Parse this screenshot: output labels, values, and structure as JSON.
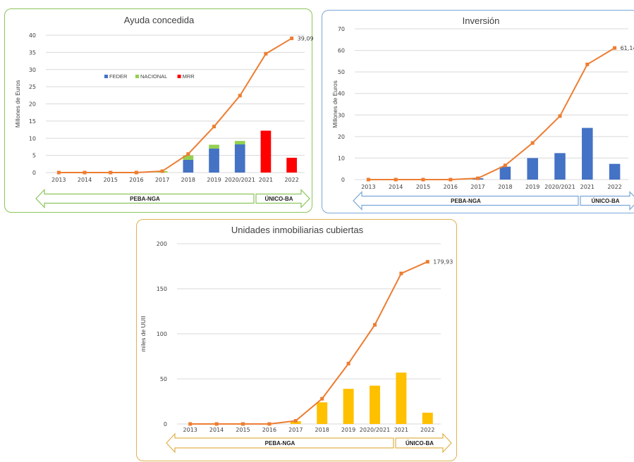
{
  "colors": {
    "line": "#ed7d31",
    "feder": "#4472c4",
    "nacional": "#92d050",
    "mrr": "#ff0000",
    "uuii": "#ffc000",
    "grid": "#d9d9d9",
    "green_border": "#8cc55a",
    "blue_border": "#7aa7d8",
    "gold_border": "#e0b24e"
  },
  "chart_data": [
    {
      "type": "bar+line",
      "title": "Ayuda concedida",
      "ylabel": "Millones de Euros",
      "ylim": [
        0,
        40
      ],
      "yticks": [
        "0",
        "5",
        "10",
        "15",
        "20",
        "25",
        "30",
        "35",
        "40"
      ],
      "grid": true,
      "categories": [
        "2013",
        "2014",
        "2015",
        "2016",
        "2017",
        "2018",
        "2019",
        "2020/2021",
        "2021",
        "2022"
      ],
      "legend": {
        "placement": "inside-top-left",
        "items": [
          "FEDER",
          "NACIONAL",
          "MRR"
        ]
      },
      "series": [
        {
          "name": "FEDER",
          "kind": "bar",
          "color": "feder",
          "values": [
            0,
            0,
            0,
            0,
            0,
            3.7,
            7.0,
            8.2,
            0,
            0
          ]
        },
        {
          "name": "NACIONAL",
          "kind": "bar",
          "color": "nacional",
          "values": [
            0,
            0,
            0,
            0,
            0.4,
            1.3,
            1.1,
            1.0,
            0,
            0
          ]
        },
        {
          "name": "MRR",
          "kind": "bar",
          "color": "mrr",
          "values": [
            0,
            0,
            0,
            0,
            0,
            0,
            0,
            0,
            12.2,
            4.3
          ]
        },
        {
          "kind": "line",
          "color": "line",
          "values": [
            0,
            0,
            0,
            0,
            0.4,
            5.4,
            13.4,
            22.4,
            34.6,
            39.09
          ]
        }
      ],
      "end_label": "39,09",
      "arrows": [
        {
          "label": "PEBA-NGA"
        },
        {
          "label": "ÚNICO-BA"
        }
      ]
    },
    {
      "type": "bar+line",
      "title": "Inversión",
      "ylabel": "Millones de Euros",
      "ylim": [
        0,
        70
      ],
      "yticks": [
        "0",
        "10",
        "20",
        "30",
        "40",
        "50",
        "60",
        "70"
      ],
      "grid": true,
      "categories": [
        "2013",
        "2014",
        "2015",
        "2016",
        "2017",
        "2018",
        "2019",
        "2020/2021",
        "2021",
        "2022"
      ],
      "series": [
        {
          "kind": "bar",
          "color": "feder",
          "values": [
            0,
            0,
            0,
            0,
            0.6,
            6.0,
            10.0,
            12.3,
            24.0,
            7.3
          ]
        },
        {
          "kind": "line",
          "color": "line",
          "values": [
            0,
            0,
            0,
            0,
            0.6,
            6.6,
            17.0,
            29.5,
            53.5,
            61.14
          ]
        }
      ],
      "end_label": "61,14",
      "arrows": [
        {
          "label": "PEBA-NGA"
        },
        {
          "label": "ÚNICO-BA"
        }
      ]
    },
    {
      "type": "bar+line",
      "title": "Unidades inmobiliarias cubiertas",
      "ylabel": "miles de UUII",
      "ylim": [
        0,
        200
      ],
      "yticks": [
        "0",
        "50",
        "100",
        "150",
        "200"
      ],
      "grid": true,
      "categories": [
        "2013",
        "2014",
        "2015",
        "2016",
        "2017",
        "2018",
        "2019",
        "2020/2021",
        "2021",
        "2022"
      ],
      "series": [
        {
          "kind": "bar",
          "color": "uuii",
          "values": [
            0,
            0,
            0,
            0,
            3,
            24,
            39,
            42.5,
            57,
            12.5
          ]
        },
        {
          "kind": "line",
          "color": "line",
          "values": [
            0,
            0,
            0,
            0,
            3.5,
            28,
            67,
            110,
            167,
            179.93
          ]
        }
      ],
      "end_label": "179,93",
      "arrows": [
        {
          "label": "PEBA-NGA"
        },
        {
          "label": "ÚNICO-BA"
        }
      ]
    }
  ]
}
